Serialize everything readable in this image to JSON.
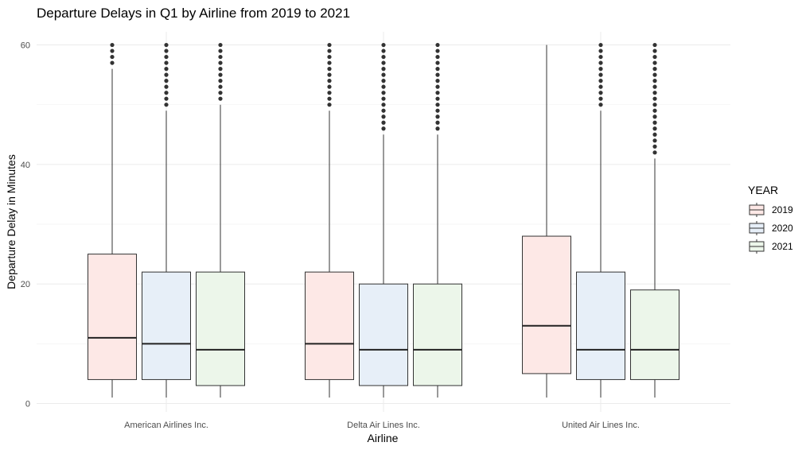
{
  "chart_data": {
    "type": "box",
    "title": "Departure Delays in Q1 by Airline from 2019 to 2021",
    "xlabel": "Airline",
    "ylabel": "Departure Delay in Minutes",
    "ylim": [
      -2,
      61
    ],
    "yticks": [
      "0",
      "20",
      "40",
      "60"
    ],
    "grid": true,
    "legend": {
      "title": "YEAR",
      "position": "right"
    },
    "categories": [
      "American Airlines Inc.",
      "Delta Air Lines Inc.",
      "United Air Lines Inc."
    ],
    "series": [
      {
        "name": "2019",
        "color": "#fde8e6",
        "boxes": [
          {
            "whisker_low": 1,
            "q1": 4,
            "median": 11,
            "q3": 25,
            "whisker_high": 56,
            "outliers": [
              57,
              58,
              59,
              60
            ]
          },
          {
            "whisker_low": 1,
            "q1": 4,
            "median": 10,
            "q3": 22,
            "whisker_high": 49,
            "outliers": [
              50,
              51,
              52,
              53,
              54,
              55,
              56,
              57,
              58,
              59,
              60
            ]
          },
          {
            "whisker_low": 1,
            "q1": 5,
            "median": 13,
            "q3": 28,
            "whisker_high": 60,
            "outliers": []
          }
        ]
      },
      {
        "name": "2020",
        "color": "#e7eff8",
        "boxes": [
          {
            "whisker_low": 1,
            "q1": 4,
            "median": 10,
            "q3": 22,
            "whisker_high": 49,
            "outliers": [
              50,
              51,
              52,
              53,
              54,
              55,
              56,
              57,
              58,
              59,
              60
            ]
          },
          {
            "whisker_low": 1,
            "q1": 3,
            "median": 9,
            "q3": 20,
            "whisker_high": 45,
            "outliers": [
              46,
              47,
              48,
              49,
              50,
              51,
              52,
              53,
              54,
              55,
              56,
              57,
              58,
              59,
              60
            ]
          },
          {
            "whisker_low": 1,
            "q1": 4,
            "median": 9,
            "q3": 22,
            "whisker_high": 49,
            "outliers": [
              50,
              51,
              52,
              53,
              54,
              55,
              56,
              57,
              58,
              59,
              60
            ]
          }
        ]
      },
      {
        "name": "2021",
        "color": "#ecf6ea",
        "boxes": [
          {
            "whisker_low": 1,
            "q1": 3,
            "median": 9,
            "q3": 22,
            "whisker_high": 50,
            "outliers": [
              51,
              52,
              53,
              54,
              55,
              56,
              57,
              58,
              59,
              60
            ]
          },
          {
            "whisker_low": 1,
            "q1": 3,
            "median": 9,
            "q3": 20,
            "whisker_high": 45,
            "outliers": [
              46,
              47,
              48,
              49,
              50,
              51,
              52,
              53,
              54,
              55,
              56,
              57,
              58,
              59,
              60
            ]
          },
          {
            "whisker_low": 1,
            "q1": 4,
            "median": 9,
            "q3": 19,
            "whisker_high": 41,
            "outliers": [
              42,
              43,
              44,
              45,
              46,
              47,
              48,
              49,
              50,
              51,
              52,
              53,
              54,
              55,
              56,
              57,
              58,
              59,
              60
            ]
          }
        ]
      }
    ]
  }
}
